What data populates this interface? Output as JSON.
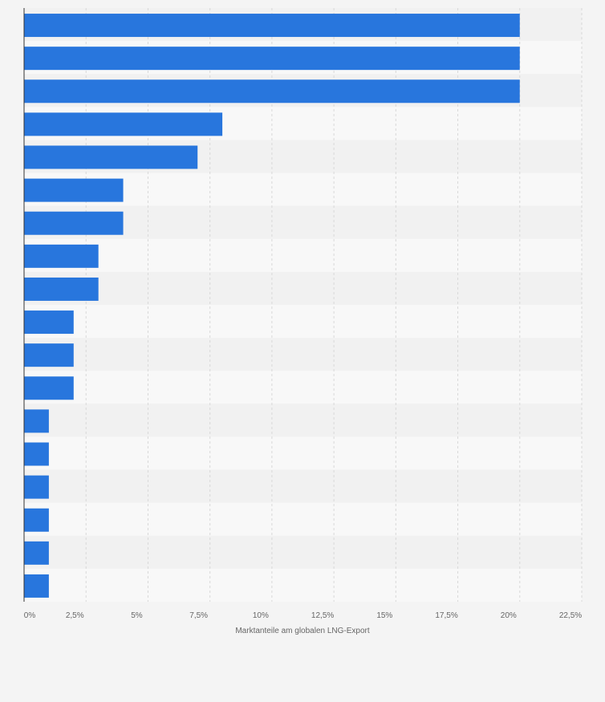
{
  "chart_data": {
    "type": "bar",
    "orientation": "horizontal",
    "categories": [
      "",
      "",
      "",
      "",
      "",
      "",
      "",
      "",
      "",
      "",
      "",
      "",
      "",
      "",
      "",
      "",
      "",
      ""
    ],
    "values": [
      20,
      20,
      20,
      8,
      7,
      4,
      4,
      3,
      3,
      2,
      2,
      2,
      1,
      1,
      1,
      1,
      1,
      1
    ],
    "xlabel": "Marktanteile am globalen LNG-Export",
    "xlim": [
      0,
      22.5
    ],
    "xticks": [
      0,
      2.5,
      5,
      7.5,
      10,
      12.5,
      15,
      17.5,
      20,
      22.5
    ],
    "xtick_labels": [
      "0%",
      "2,5%",
      "5%",
      "7,5%",
      "10%",
      "12,5%",
      "15%",
      "17,5%",
      "20%",
      "22,5%"
    ],
    "grid": "vertical",
    "colors": {
      "bar": "#2876dd",
      "band_dark": "#f1f1f1",
      "band_light": "#f8f8f8",
      "grid": "#d8d8d8",
      "axis": "#333333",
      "text": "#666666"
    }
  }
}
